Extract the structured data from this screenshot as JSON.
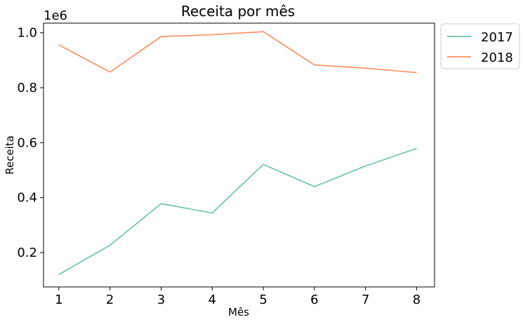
{
  "chart_data": {
    "type": "line",
    "title": "Receita por mês",
    "xlabel": "Mês",
    "ylabel": "Receita",
    "y_offset_label": "1e6",
    "x": [
      1,
      2,
      3,
      4,
      5,
      6,
      7,
      8
    ],
    "xlim": [
      0.7,
      8.35
    ],
    "ylim": [
      0.075,
      1.035
    ],
    "x_ticks": [
      1,
      2,
      3,
      4,
      5,
      6,
      7,
      8
    ],
    "y_ticks": [
      0.2,
      0.4,
      0.6,
      0.8,
      1.0
    ],
    "y_tick_labels": [
      "0.2",
      "0.4",
      "0.6",
      "0.8",
      "1.0"
    ],
    "grid": false,
    "legend_position": "outside-top-right",
    "series": [
      {
        "name": "2017",
        "color": "#66c2a5",
        "values": [
          0.12,
          0.227,
          0.378,
          0.344,
          0.521,
          0.44,
          0.515,
          0.579
        ]
      },
      {
        "name": "2018",
        "color": "#fc8d62",
        "values": [
          0.956,
          0.857,
          0.986,
          0.993,
          1.004,
          0.883,
          0.871,
          0.855
        ]
      }
    ]
  }
}
